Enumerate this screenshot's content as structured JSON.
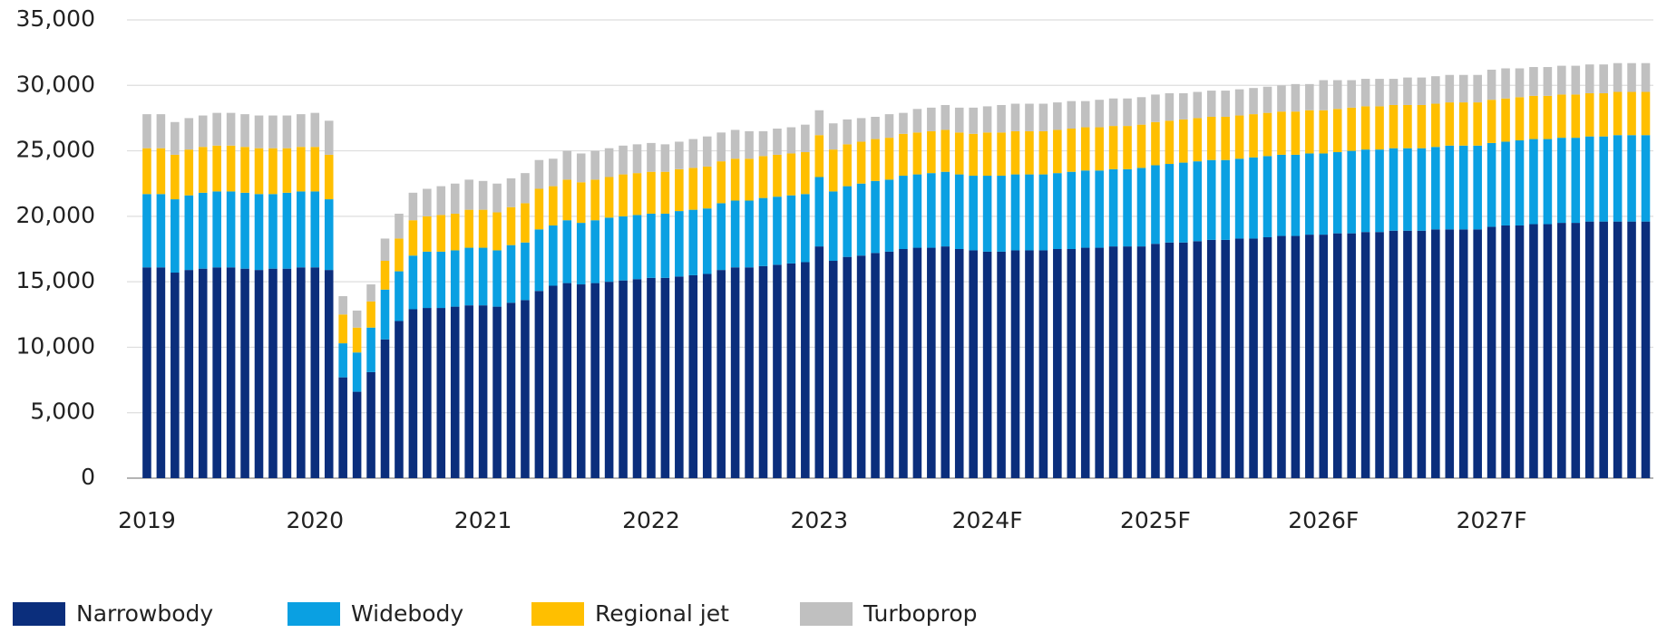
{
  "chart_data": {
    "type": "stacked_bar",
    "categories": [
      "2019",
      null,
      null,
      null,
      null,
      null,
      null,
      null,
      null,
      null,
      null,
      null,
      "2020",
      null,
      null,
      null,
      null,
      null,
      null,
      null,
      null,
      null,
      null,
      null,
      "2021",
      null,
      null,
      null,
      null,
      null,
      null,
      null,
      null,
      null,
      null,
      null,
      "2022",
      null,
      null,
      null,
      null,
      null,
      null,
      null,
      null,
      null,
      null,
      null,
      "2023",
      null,
      null,
      null,
      null,
      null,
      null,
      null,
      null,
      null,
      null,
      null,
      "2024F",
      null,
      null,
      null,
      null,
      null,
      null,
      null,
      null,
      null,
      null,
      null,
      "2025F",
      null,
      null,
      null,
      null,
      null,
      null,
      null,
      null,
      null,
      null,
      null,
      "2026F",
      null,
      null,
      null,
      null,
      null,
      null,
      null,
      null,
      null,
      null,
      null,
      "2027F",
      null,
      null,
      null,
      null,
      null,
      null,
      null,
      null,
      null,
      null,
      null
    ],
    "series": [
      {
        "name": "Narrowbody",
        "color": "#0b2e7c",
        "values": [
          16100,
          16100,
          15700,
          15900,
          16000,
          16100,
          16100,
          16000,
          15900,
          16000,
          16000,
          16100,
          16100,
          15900,
          7700,
          6600,
          8100,
          10600,
          12000,
          12900,
          13000,
          13000,
          13100,
          13200,
          13200,
          13100,
          13400,
          13600,
          14300,
          14700,
          14900,
          14800,
          14900,
          15000,
          15100,
          15200,
          15300,
          15300,
          15400,
          15500,
          15600,
          15900,
          16100,
          16100,
          16200,
          16300,
          16400,
          16500,
          17700,
          16600,
          16900,
          17000,
          17200,
          17300,
          17500,
          17600,
          17600,
          17700,
          17500,
          17400,
          17300,
          17300,
          17400,
          17400,
          17400,
          17500,
          17500,
          17600,
          17600,
          17700,
          17700,
          17700,
          17900,
          18000,
          18000,
          18100,
          18200,
          18200,
          18300,
          18300,
          18400,
          18500,
          18500,
          18600,
          18600,
          18700,
          18700,
          18800,
          18800,
          18900,
          18900,
          18900,
          19000,
          19000,
          19000,
          19000,
          19200,
          19300,
          19300,
          19400,
          19400,
          19500,
          19500,
          19600,
          19600,
          19600,
          19600,
          19600
        ]
      },
      {
        "name": "Widebody",
        "color": "#0aa0e2",
        "values": [
          5600,
          5600,
          5600,
          5700,
          5800,
          5800,
          5800,
          5800,
          5800,
          5700,
          5800,
          5800,
          5800,
          5400,
          2600,
          3000,
          3400,
          3800,
          3800,
          4100,
          4300,
          4300,
          4300,
          4400,
          4400,
          4300,
          4400,
          4400,
          4700,
          4600,
          4800,
          4700,
          4800,
          4900,
          4900,
          4900,
          4900,
          4900,
          5000,
          5000,
          5000,
          5100,
          5100,
          5100,
          5200,
          5200,
          5200,
          5200,
          5300,
          5300,
          5400,
          5500,
          5500,
          5500,
          5600,
          5600,
          5700,
          5700,
          5700,
          5700,
          5800,
          5800,
          5800,
          5800,
          5800,
          5800,
          5900,
          5900,
          5900,
          5900,
          5900,
          6000,
          6000,
          6000,
          6100,
          6100,
          6100,
          6100,
          6100,
          6200,
          6200,
          6200,
          6200,
          6200,
          6200,
          6200,
          6300,
          6300,
          6300,
          6300,
          6300,
          6300,
          6300,
          6400,
          6400,
          6400,
          6400,
          6400,
          6500,
          6500,
          6500,
          6500,
          6500,
          6500,
          6500,
          6600,
          6600,
          6600
        ]
      },
      {
        "name": "Regional jet",
        "color": "#ffbf00",
        "values": [
          3500,
          3500,
          3400,
          3500,
          3500,
          3500,
          3500,
          3500,
          3500,
          3500,
          3400,
          3400,
          3400,
          3400,
          2200,
          1900,
          2000,
          2200,
          2500,
          2700,
          2700,
          2800,
          2800,
          2900,
          2900,
          2900,
          2900,
          3000,
          3100,
          3000,
          3100,
          3100,
          3100,
          3100,
          3200,
          3200,
          3200,
          3200,
          3200,
          3200,
          3200,
          3200,
          3200,
          3200,
          3200,
          3200,
          3200,
          3200,
          3200,
          3200,
          3200,
          3200,
          3200,
          3200,
          3200,
          3200,
          3200,
          3200,
          3200,
          3200,
          3300,
          3300,
          3300,
          3300,
          3300,
          3300,
          3300,
          3300,
          3300,
          3300,
          3300,
          3300,
          3300,
          3300,
          3300,
          3300,
          3300,
          3300,
          3300,
          3300,
          3300,
          3300,
          3300,
          3300,
          3300,
          3300,
          3300,
          3300,
          3300,
          3300,
          3300,
          3300,
          3300,
          3300,
          3300,
          3300,
          3300,
          3300,
          3300,
          3300,
          3300,
          3300,
          3300,
          3300,
          3300,
          3300,
          3300,
          3300
        ]
      },
      {
        "name": "Turboprop",
        "color": "#c0c0c0",
        "values": [
          2600,
          2600,
          2500,
          2400,
          2400,
          2500,
          2500,
          2500,
          2500,
          2500,
          2500,
          2500,
          2600,
          2600,
          1400,
          1300,
          1300,
          1700,
          1900,
          2100,
          2100,
          2200,
          2300,
          2300,
          2200,
          2200,
          2200,
          2300,
          2200,
          2100,
          2200,
          2200,
          2200,
          2200,
          2200,
          2200,
          2200,
          2100,
          2100,
          2200,
          2300,
          2200,
          2200,
          2100,
          1900,
          2000,
          2000,
          2100,
          1900,
          2000,
          1900,
          1800,
          1700,
          1800,
          1600,
          1800,
          1800,
          1900,
          1900,
          2000,
          2000,
          2100,
          2100,
          2100,
          2100,
          2100,
          2100,
          2000,
          2100,
          2100,
          2100,
          2100,
          2100,
          2100,
          2000,
          2000,
          2000,
          2000,
          2000,
          2000,
          2000,
          2000,
          2100,
          2000,
          2300,
          2200,
          2100,
          2100,
          2100,
          2000,
          2100,
          2100,
          2100,
          2100,
          2100,
          2100,
          2300,
          2300,
          2200,
          2200,
          2200,
          2200,
          2200,
          2200,
          2200,
          2200,
          2200,
          2200
        ]
      }
    ],
    "ylim": [
      0,
      35000
    ],
    "yticks": [
      0,
      {
        "value": 5000,
        "label": "5,000"
      },
      {
        "value": 10000,
        "label": "10,000"
      },
      {
        "value": 15000,
        "label": "15,000"
      },
      {
        "value": 20000,
        "label": "20,000"
      },
      {
        "value": 25000,
        "label": "25,000"
      },
      {
        "value": 30000,
        "label": "30,000"
      },
      {
        "value": 35000,
        "label": "35,000"
      }
    ],
    "grid": true,
    "legend": "bottom"
  }
}
